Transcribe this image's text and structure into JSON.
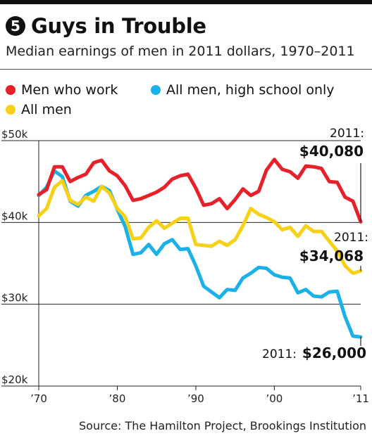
{
  "header": {
    "number": "5",
    "title": "Guys in Trouble",
    "subtitle": "Median earnings of men in 2011 dollars, 1970–2011"
  },
  "legend": [
    {
      "label": "Men who work",
      "color": "#e8202a"
    },
    {
      "label": "All men, high school only",
      "color": "#1ab0e8"
    },
    {
      "label": "All men",
      "color": "#f7d117"
    }
  ],
  "source": "Source: The Hamilton Project, Brookings Institution",
  "end_labels": {
    "men_who_work": {
      "year": "2011:",
      "value": "$40,080"
    },
    "all_men": {
      "year": "2011:",
      "value": "$34,068"
    },
    "high_school": {
      "year": "2011:",
      "value": "$26,000"
    }
  },
  "chart_data": {
    "type": "line",
    "x": [
      1970,
      1971,
      1972,
      1973,
      1974,
      1975,
      1976,
      1977,
      1978,
      1979,
      1980,
      1981,
      1982,
      1983,
      1984,
      1985,
      1986,
      1987,
      1988,
      1989,
      1990,
      1991,
      1992,
      1993,
      1994,
      1995,
      1996,
      1997,
      1998,
      1999,
      2000,
      2001,
      2002,
      2003,
      2004,
      2005,
      2006,
      2007,
      2008,
      2009,
      2010,
      2011
    ],
    "series": [
      {
        "name": "Men who work",
        "color": "#e8202a",
        "values": [
          43400,
          44000,
          46800,
          46800,
          45000,
          45500,
          45900,
          47300,
          47600,
          46300,
          45700,
          44500,
          42700,
          42900,
          43300,
          43700,
          44300,
          45300,
          45700,
          45900,
          44200,
          42100,
          42300,
          42900,
          41700,
          42800,
          44100,
          43300,
          43800,
          46400,
          47700,
          46500,
          46200,
          45400,
          46900,
          46800,
          46600,
          45000,
          44900,
          43100,
          42600,
          40080
        ]
      },
      {
        "name": "All men, high school only",
        "color": "#1ab0e8",
        "values": [
          43300,
          44300,
          46300,
          45600,
          42600,
          42000,
          43300,
          43800,
          44400,
          43900,
          41600,
          39500,
          36100,
          36300,
          37300,
          36100,
          37400,
          37900,
          36700,
          36800,
          34700,
          32200,
          31500,
          30800,
          31800,
          31700,
          33200,
          33800,
          34500,
          34400,
          33600,
          33300,
          33200,
          31400,
          31800,
          31000,
          30900,
          31500,
          31600,
          28500,
          26100,
          26000
        ]
      },
      {
        "name": "All men",
        "color": "#f7d117",
        "values": [
          40800,
          41700,
          44300,
          45100,
          42700,
          42200,
          43100,
          42600,
          44400,
          43600,
          41700,
          40700,
          38000,
          38100,
          39400,
          40200,
          39300,
          39900,
          40500,
          40500,
          37300,
          37200,
          37100,
          37700,
          37200,
          37900,
          39600,
          41700,
          41000,
          40600,
          40100,
          39100,
          39400,
          38300,
          39600,
          38900,
          38900,
          37700,
          36500,
          34700,
          33800,
          34068
        ]
      }
    ],
    "y_ticks": [
      20000,
      30000,
      40000,
      50000
    ],
    "y_tick_labels": [
      "$20k",
      "$30k",
      "$40k",
      "$50k"
    ],
    "x_ticks": [
      1970,
      1980,
      1990,
      2000,
      2011
    ],
    "x_tick_labels": [
      "’70",
      "’80",
      "’90",
      "’00",
      "’11"
    ],
    "ylim": [
      20000,
      50000
    ],
    "xlim": [
      1970,
      2011
    ],
    "grid": true
  }
}
